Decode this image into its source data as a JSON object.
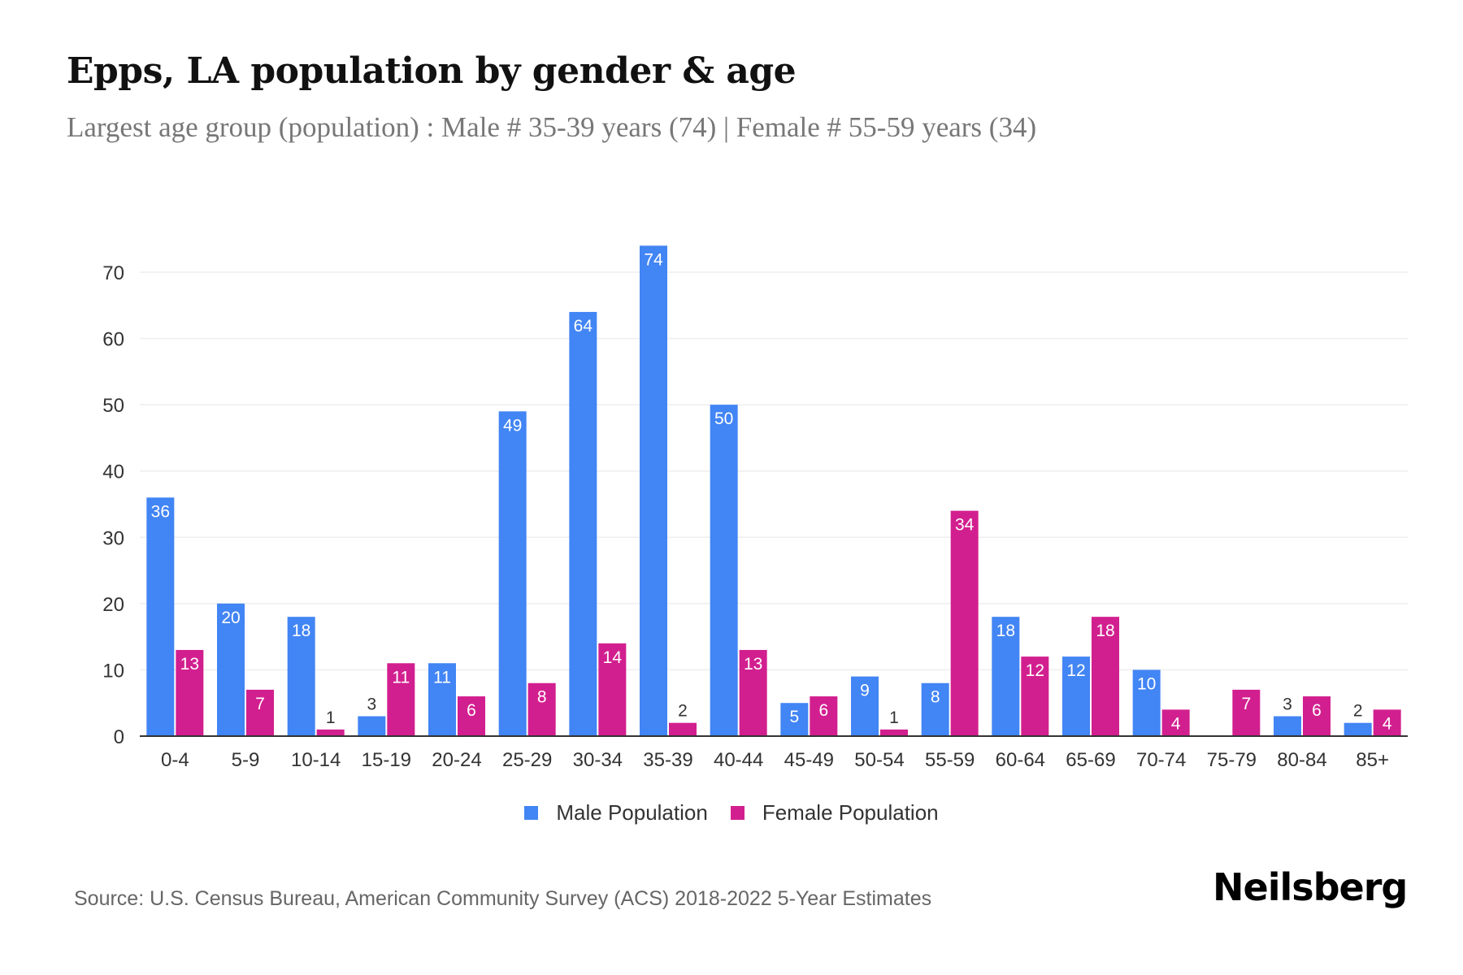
{
  "header": {
    "title": "Epps, LA population by gender & age",
    "subtitle": "Largest age group (population) : Male # 35-39 years (74) | Female # 55-59 years (34)"
  },
  "colors": {
    "male": "#4285f4",
    "female": "#d21f8f",
    "grid": "#eeeeee",
    "axis": "#333333"
  },
  "chart_data": {
    "type": "bar",
    "title": "Epps, LA population by gender & age",
    "subtitle": "Largest age group (population) : Male # 35-39 years (74) | Female # 55-59 years (34)",
    "xlabel": "",
    "ylabel": "",
    "categories": [
      "0-4",
      "5-9",
      "10-14",
      "15-19",
      "20-24",
      "25-29",
      "30-34",
      "35-39",
      "40-44",
      "45-49",
      "50-54",
      "55-59",
      "60-64",
      "65-69",
      "70-74",
      "75-79",
      "80-84",
      "85+"
    ],
    "series": [
      {
        "name": "Male Population",
        "values": [
          36,
          20,
          18,
          3,
          11,
          49,
          64,
          74,
          50,
          5,
          9,
          8,
          18,
          12,
          10,
          0,
          3,
          2
        ]
      },
      {
        "name": "Female Population",
        "values": [
          13,
          7,
          1,
          11,
          6,
          8,
          14,
          2,
          13,
          6,
          1,
          34,
          12,
          18,
          4,
          7,
          6,
          4
        ]
      }
    ],
    "ylim": [
      0,
      74
    ],
    "yticks": [
      0,
      10,
      20,
      30,
      40,
      50,
      60,
      70
    ],
    "grid": true,
    "legend": "bottom-center"
  },
  "legend": {
    "items": [
      {
        "label": "Male Population"
      },
      {
        "label": "Female Population"
      }
    ]
  },
  "footer": {
    "source": "Source: U.S. Census Bureau, American Community Survey (ACS) 2018-2022 5-Year Estimates",
    "brand": "Neilsberg"
  }
}
